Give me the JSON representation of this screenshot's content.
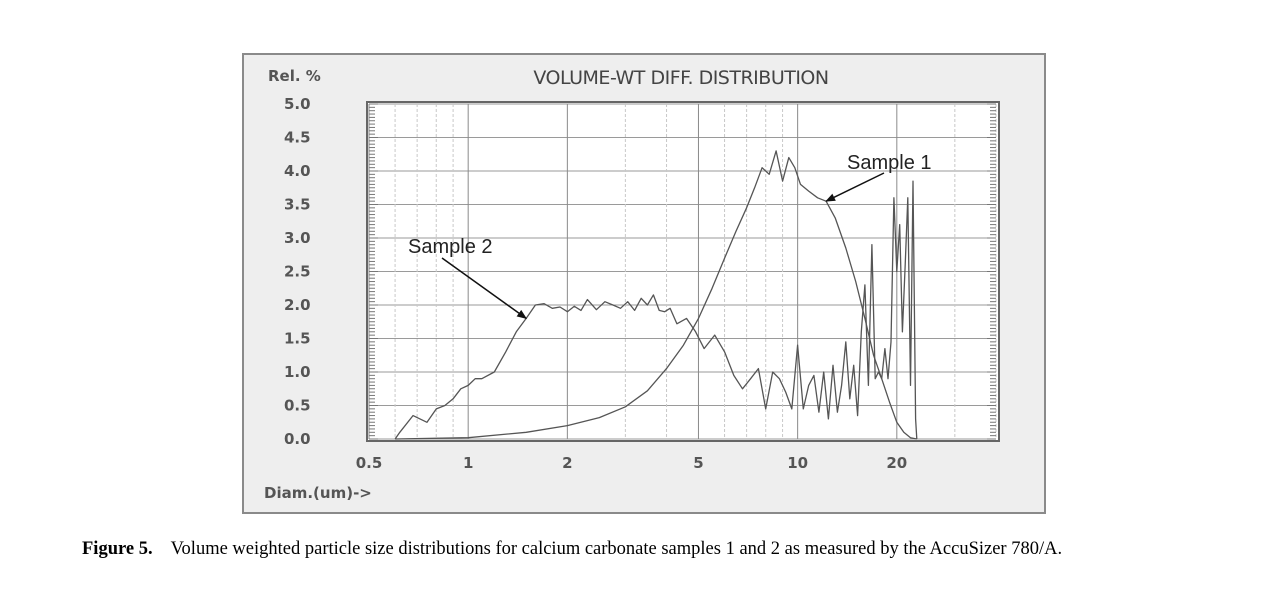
{
  "figure": {
    "caption_label": "Figure 5.",
    "caption_text": "Volume weighted particle size distributions for calcium carbonate samples 1 and 2 as measured by the AccuSizer 780/A."
  },
  "chart_data": {
    "type": "line",
    "title": "VOLUME-WT DIFF. DISTRIBUTION",
    "ylabel": "Rel. %",
    "xlabel": "Diam.(um)->",
    "x_scale": "log",
    "xlim": [
      0.5,
      40
    ],
    "ylim": [
      0,
      5
    ],
    "y_ticks": [
      0.0,
      0.5,
      1.0,
      1.5,
      2.0,
      2.5,
      3.0,
      3.5,
      4.0,
      4.5,
      5.0
    ],
    "y_tick_labels": [
      "0.0",
      "0.5",
      "1.0",
      "1.5",
      "2.0",
      "2.5",
      "3.0",
      "3.5",
      "4.0",
      "4.5",
      "5.0"
    ],
    "x_ticks": [
      0.5,
      1,
      2,
      5,
      10,
      20
    ],
    "x_tick_labels": [
      "0.5",
      "1",
      "2",
      "5",
      "10",
      "20"
    ],
    "grid": true,
    "colors": {
      "line": "#555555",
      "grid": "#9a9a9a",
      "frame": "#666666",
      "panel": "#eeeeee",
      "plot": "#ffffff"
    },
    "annotations": [
      {
        "text": "Sample 1",
        "target": [
          12.2,
          3.55
        ],
        "series": "Sample 1"
      },
      {
        "text": "Sample 2",
        "target": [
          1.5,
          1.8
        ],
        "series": "Sample 2"
      }
    ],
    "series": [
      {
        "name": "Sample 1",
        "x": [
          0.6,
          1.0,
          1.5,
          2.0,
          2.5,
          3.0,
          3.5,
          4.0,
          4.5,
          5.0,
          5.5,
          6.0,
          6.5,
          7.0,
          7.4,
          7.8,
          8.2,
          8.6,
          9.0,
          9.4,
          9.8,
          10.2,
          10.8,
          11.5,
          12.2,
          13.0,
          14.0,
          15.0,
          16.0,
          17.0,
          18.0,
          19.0,
          20.0,
          21.0,
          22.0,
          23.0
        ],
        "y": [
          0.0,
          0.02,
          0.1,
          0.2,
          0.32,
          0.48,
          0.72,
          1.05,
          1.4,
          1.8,
          2.25,
          2.7,
          3.1,
          3.45,
          3.75,
          4.05,
          3.95,
          4.3,
          3.85,
          4.2,
          4.05,
          3.8,
          3.7,
          3.6,
          3.55,
          3.3,
          2.85,
          2.35,
          1.8,
          1.25,
          0.9,
          0.55,
          0.25,
          0.1,
          0.02,
          0.0
        ]
      },
      {
        "name": "Sample 2",
        "x": [
          0.6,
          0.62,
          0.68,
          0.75,
          0.8,
          0.85,
          0.9,
          0.95,
          1.0,
          1.05,
          1.1,
          1.2,
          1.3,
          1.4,
          1.5,
          1.6,
          1.7,
          1.8,
          1.9,
          2.0,
          2.1,
          2.2,
          2.3,
          2.45,
          2.6,
          2.75,
          2.9,
          3.05,
          3.2,
          3.35,
          3.5,
          3.65,
          3.8,
          3.95,
          4.1,
          4.3,
          4.6,
          4.9,
          5.2,
          5.6,
          6.0,
          6.4,
          6.8,
          7.2,
          7.6,
          8.0,
          8.4,
          8.8,
          9.2,
          9.6,
          10.0,
          10.4,
          10.8,
          11.2,
          11.6,
          12.0,
          12.4,
          12.8,
          13.2,
          13.6,
          14.0,
          14.4,
          14.8,
          15.2,
          15.6,
          16.0,
          16.4,
          16.8,
          17.2,
          17.6,
          18.0,
          18.4,
          18.8,
          19.2,
          19.6,
          20.0,
          20.4,
          20.8,
          21.2,
          21.6,
          22.0,
          22.4,
          22.8,
          23.0
        ],
        "y": [
          0.0,
          0.1,
          0.35,
          0.25,
          0.45,
          0.5,
          0.6,
          0.75,
          0.8,
          0.9,
          0.9,
          1.0,
          1.3,
          1.6,
          1.8,
          2.0,
          2.02,
          1.95,
          1.97,
          1.9,
          1.98,
          1.92,
          2.08,
          1.93,
          2.05,
          2.0,
          1.95,
          2.05,
          1.92,
          2.1,
          2.0,
          2.15,
          1.92,
          1.9,
          1.95,
          1.72,
          1.8,
          1.6,
          1.35,
          1.55,
          1.3,
          0.95,
          0.75,
          0.9,
          1.05,
          0.45,
          1.0,
          0.9,
          0.7,
          0.45,
          1.4,
          0.45,
          0.8,
          0.95,
          0.4,
          1.0,
          0.3,
          1.1,
          0.4,
          0.8,
          1.45,
          0.6,
          1.1,
          0.35,
          1.6,
          2.3,
          0.8,
          2.9,
          0.9,
          1.0,
          0.9,
          1.35,
          0.9,
          1.45,
          3.6,
          2.5,
          3.2,
          1.6,
          2.6,
          3.6,
          0.8,
          3.85,
          0.3,
          0.0
        ]
      }
    ]
  }
}
